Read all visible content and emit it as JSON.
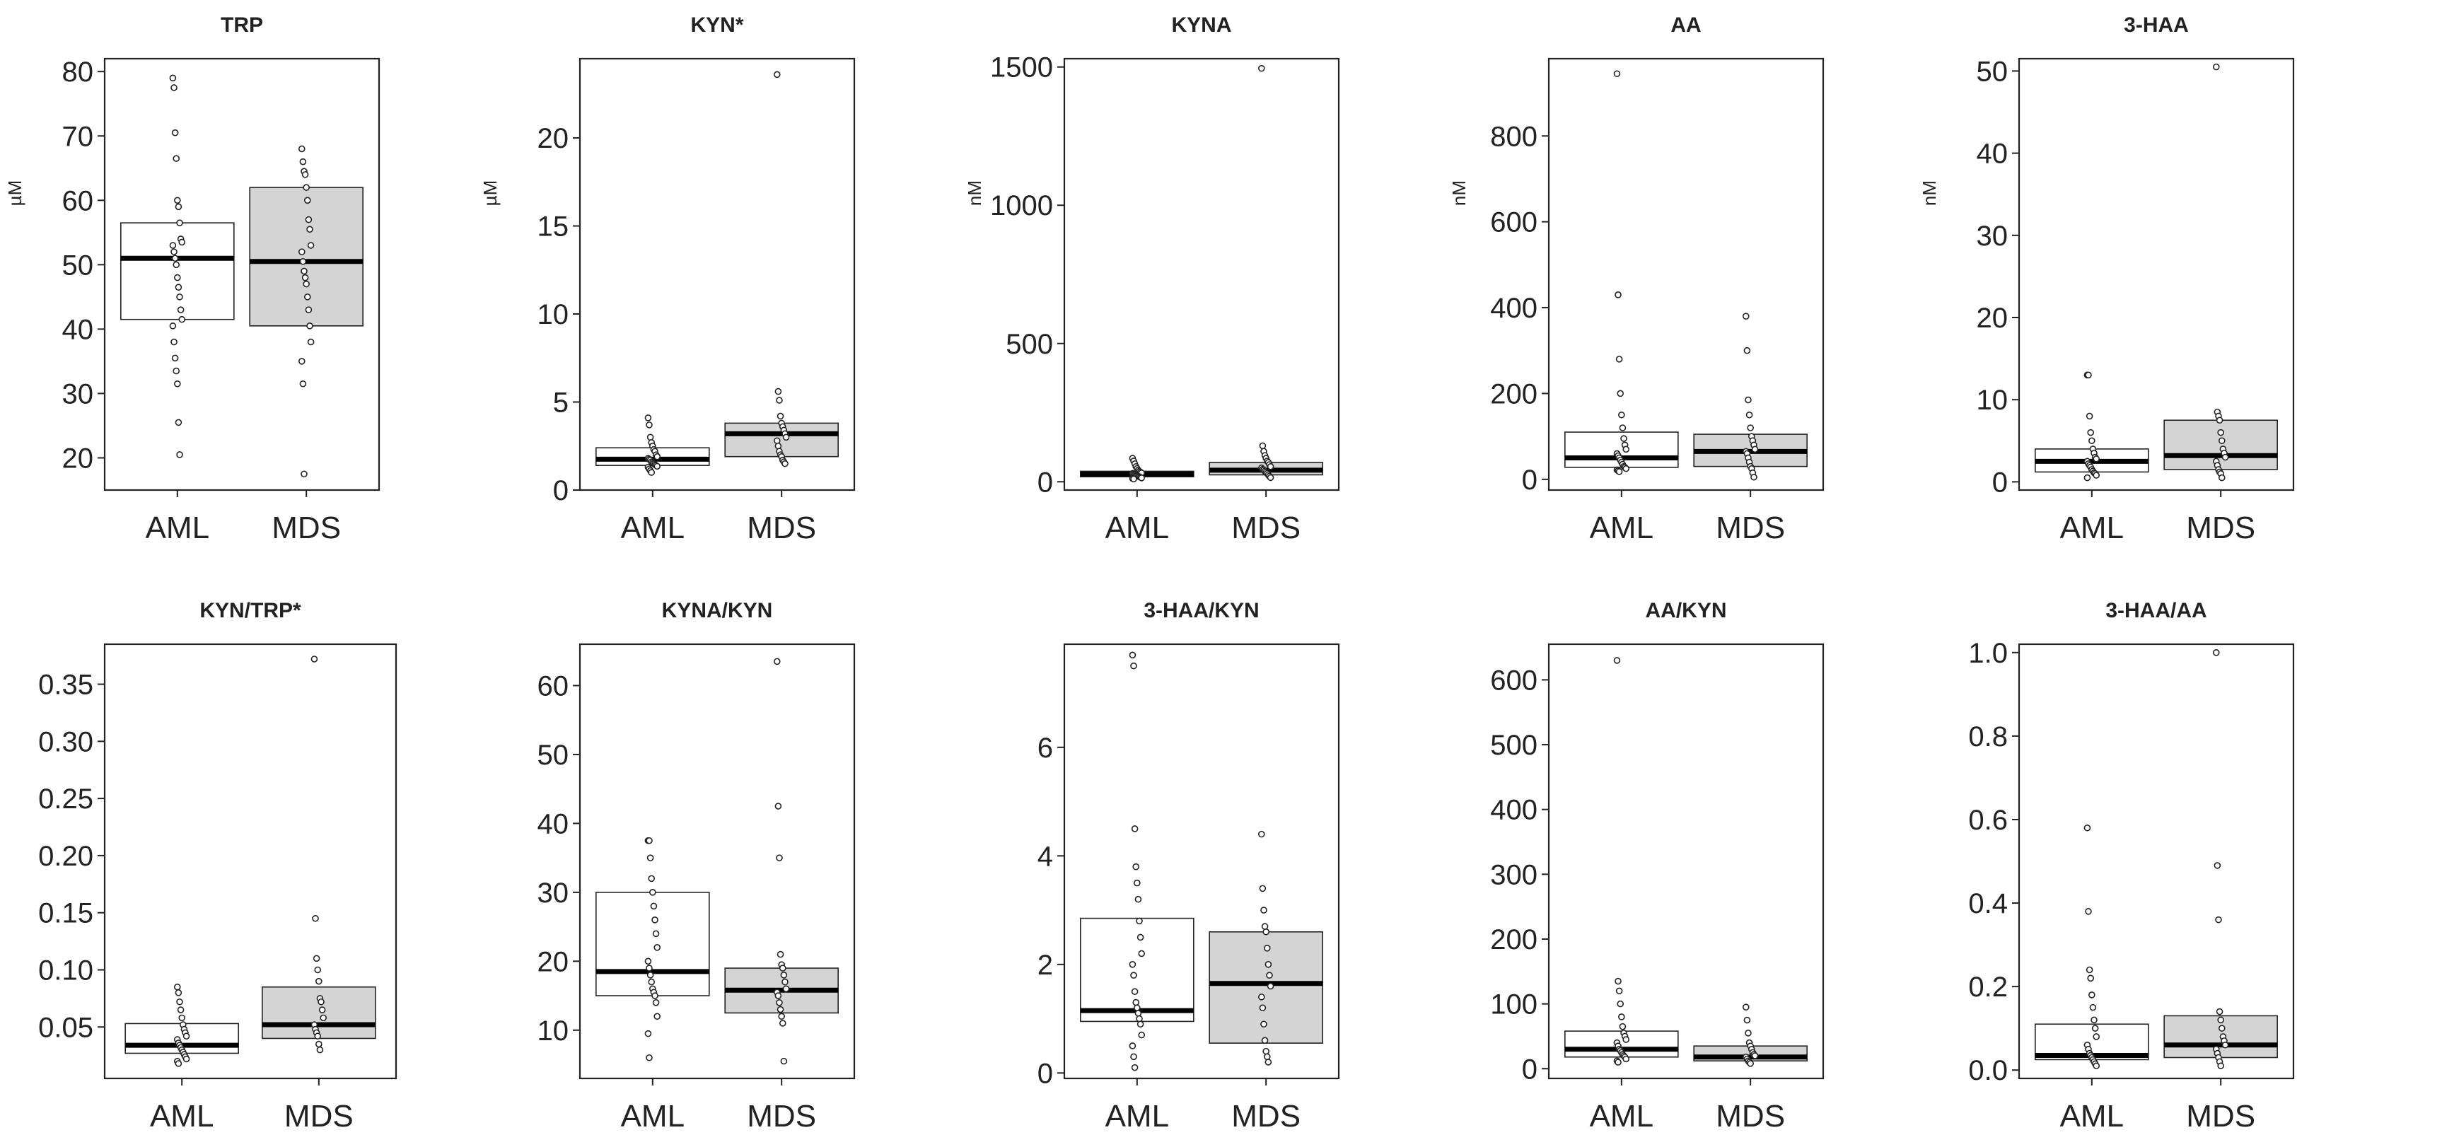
{
  "figure": {
    "categories": [
      "AML",
      "MDS"
    ],
    "fills": {
      "AML": "#ffffff",
      "MDS": "#d4d4d4"
    }
  },
  "chart_data": [
    {
      "type": "box",
      "title": "TRP",
      "ylabel": "µM",
      "ylim": [
        15,
        82
      ],
      "yticks": [
        20,
        30,
        40,
        50,
        60,
        70,
        80
      ],
      "tick_labels": [
        "20",
        "30",
        "40",
        "50",
        "60",
        "70",
        "80"
      ],
      "categories": [
        "AML",
        "MDS"
      ],
      "boxes": [
        {
          "name": "AML",
          "q1": 41.5,
          "median": 51,
          "q3": 56.5,
          "points": [
            79,
            77.5,
            70.5,
            66.5,
            60,
            59,
            56.5,
            54,
            53.5,
            53,
            52,
            51,
            50,
            48,
            46.5,
            45,
            43,
            41.5,
            40.5,
            38,
            35.5,
            33.5,
            31.5,
            25.5,
            20.5
          ]
        },
        {
          "name": "MDS",
          "q1": 40.5,
          "median": 50.5,
          "q3": 62,
          "points": [
            68,
            66,
            64.5,
            64,
            62,
            60,
            57,
            55.5,
            53,
            52,
            50.5,
            49,
            48,
            47,
            45,
            43,
            40.5,
            38,
            35,
            31.5,
            17.5
          ]
        }
      ]
    },
    {
      "type": "box",
      "title": "KYN*",
      "ylabel": "µM",
      "ylim": [
        0,
        24.5
      ],
      "yticks": [
        0,
        5,
        10,
        15,
        20
      ],
      "tick_labels": [
        "0",
        "5",
        "10",
        "15",
        "20"
      ],
      "categories": [
        "AML",
        "MDS"
      ],
      "boxes": [
        {
          "name": "AML",
          "q1": 1.4,
          "median": 1.75,
          "q3": 2.4,
          "points": [
            4.1,
            3.7,
            3.0,
            2.7,
            2.5,
            2.3,
            2.2,
            2.0,
            1.9,
            1.8,
            1.75,
            1.7,
            1.6,
            1.55,
            1.5,
            1.45,
            1.4,
            1.35,
            1.3,
            1.2,
            1.1,
            1.0
          ]
        },
        {
          "name": "MDS",
          "q1": 1.9,
          "median": 3.2,
          "q3": 3.8,
          "points": [
            23.6,
            5.6,
            5.1,
            4.2,
            3.8,
            3.6,
            3.4,
            3.2,
            3.0,
            2.8,
            2.5,
            2.2,
            2.0,
            1.9,
            1.7,
            1.6,
            1.5
          ]
        }
      ]
    },
    {
      "type": "box",
      "title": "KYNA",
      "ylabel": "nM",
      "ylim": [
        -30,
        1530
      ],
      "yticks": [
        0,
        500,
        1000,
        1500
      ],
      "tick_labels": [
        "0",
        "500",
        "1000",
        "1500"
      ],
      "categories": [
        "AML",
        "MDS"
      ],
      "boxes": [
        {
          "name": "AML",
          "q1": 18,
          "median": 28,
          "q3": 38,
          "points": [
            85,
            75,
            65,
            55,
            48,
            42,
            38,
            35,
            32,
            30,
            28,
            26,
            24,
            22,
            20,
            18,
            16,
            14,
            12,
            10
          ]
        },
        {
          "name": "MDS",
          "q1": 25,
          "median": 42,
          "q3": 70,
          "points": [
            1495,
            130,
            110,
            95,
            85,
            75,
            70,
            62,
            55,
            50,
            45,
            42,
            38,
            34,
            30,
            25,
            20,
            15
          ]
        }
      ]
    },
    {
      "type": "box",
      "title": "AA",
      "ylabel": "nM",
      "ylim": [
        -25,
        980
      ],
      "yticks": [
        0,
        200,
        400,
        600,
        800
      ],
      "tick_labels": [
        "0",
        "200",
        "400",
        "600",
        "800"
      ],
      "categories": [
        "AML",
        "MDS"
      ],
      "boxes": [
        {
          "name": "AML",
          "q1": 28,
          "median": 50,
          "q3": 110,
          "points": [
            945,
            430,
            280,
            200,
            150,
            120,
            95,
            80,
            70,
            60,
            55,
            50,
            45,
            40,
            35,
            30,
            28,
            25,
            22,
            20,
            18
          ]
        },
        {
          "name": "MDS",
          "q1": 30,
          "median": 65,
          "q3": 105,
          "points": [
            380,
            300,
            185,
            150,
            120,
            100,
            90,
            80,
            70,
            65,
            60,
            50,
            40,
            30,
            25,
            15,
            5
          ]
        }
      ]
    },
    {
      "type": "box",
      "title": "3-HAA",
      "ylabel": "nM",
      "ylim": [
        -1,
        51.5
      ],
      "yticks": [
        0,
        10,
        20,
        30,
        40,
        50
      ],
      "tick_labels": [
        "0",
        "10",
        "20",
        "30",
        "40",
        "50"
      ],
      "categories": [
        "AML",
        "MDS"
      ],
      "boxes": [
        {
          "name": "AML",
          "q1": 1.2,
          "median": 2.5,
          "q3": 4,
          "points": [
            13,
            13,
            8,
            6,
            5,
            4,
            3.5,
            3,
            2.8,
            2.5,
            2.2,
            2,
            1.8,
            1.5,
            1.3,
            1.1,
            1,
            0.8,
            0.5
          ]
        },
        {
          "name": "MDS",
          "q1": 1.5,
          "median": 3.2,
          "q3": 7.5,
          "points": [
            50.5,
            8.5,
            8,
            7.5,
            6,
            5,
            4,
            3.5,
            3,
            2.5,
            2,
            1.5,
            1.2,
            1,
            0.5
          ]
        }
      ]
    },
    {
      "type": "box",
      "title": "KYN/TRP*",
      "ylabel": "",
      "ylim": [
        0.005,
        0.385
      ],
      "yticks": [
        0.05,
        0.1,
        0.15,
        0.2,
        0.25,
        0.3,
        0.35
      ],
      "tick_labels": [
        "0.05",
        "0.10",
        "0.15",
        "0.20",
        "0.25",
        "0.30",
        "0.35"
      ],
      "categories": [
        "AML",
        "MDS"
      ],
      "boxes": [
        {
          "name": "AML",
          "q1": 0.027,
          "median": 0.034,
          "q3": 0.053,
          "points": [
            0.085,
            0.08,
            0.072,
            0.065,
            0.058,
            0.052,
            0.048,
            0.045,
            0.042,
            0.039,
            0.036,
            0.034,
            0.032,
            0.03,
            0.028,
            0.026,
            0.024,
            0.022,
            0.02,
            0.018
          ]
        },
        {
          "name": "MDS",
          "q1": 0.04,
          "median": 0.052,
          "q3": 0.085,
          "points": [
            0.372,
            0.145,
            0.11,
            0.1,
            0.09,
            0.075,
            0.072,
            0.065,
            0.058,
            0.052,
            0.048,
            0.045,
            0.042,
            0.035,
            0.03
          ]
        }
      ]
    },
    {
      "type": "box",
      "title": "KYNA/KYN",
      "ylabel": "",
      "ylim": [
        3,
        66
      ],
      "yticks": [
        10,
        20,
        30,
        40,
        50,
        60
      ],
      "tick_labels": [
        "10",
        "20",
        "30",
        "40",
        "50",
        "60"
      ],
      "categories": [
        "AML",
        "MDS"
      ],
      "boxes": [
        {
          "name": "AML",
          "q1": 15,
          "median": 18.5,
          "q3": 30,
          "points": [
            37.5,
            37.5,
            35,
            32,
            30,
            28,
            26,
            24,
            22,
            20,
            19,
            18,
            17,
            16,
            15.5,
            15,
            14,
            12,
            9.5,
            6
          ]
        },
        {
          "name": "MDS",
          "q1": 12.5,
          "median": 15.8,
          "q3": 19,
          "points": [
            63.5,
            42.5,
            35,
            21,
            19.5,
            19,
            18,
            17,
            16,
            15.5,
            15,
            14,
            13,
            12,
            11,
            5.5
          ]
        }
      ]
    },
    {
      "type": "box",
      "title": "3-HAA/KYN",
      "ylabel": "",
      "ylim": [
        -0.1,
        7.9
      ],
      "yticks": [
        0,
        2,
        4,
        6
      ],
      "tick_labels": [
        "0",
        "2",
        "4",
        "6"
      ],
      "categories": [
        "AML",
        "MDS"
      ],
      "boxes": [
        {
          "name": "AML",
          "q1": 0.95,
          "median": 1.15,
          "q3": 2.85,
          "points": [
            7.7,
            7.5,
            4.5,
            3.8,
            3.5,
            3.2,
            2.8,
            2.5,
            2.2,
            2.0,
            1.8,
            1.5,
            1.3,
            1.2,
            1.1,
            1.0,
            0.9,
            0.7,
            0.5,
            0.3,
            0.1
          ]
        },
        {
          "name": "MDS",
          "q1": 0.55,
          "median": 1.65,
          "q3": 2.6,
          "points": [
            4.4,
            3.4,
            3.0,
            2.7,
            2.6,
            2.3,
            2.0,
            1.8,
            1.6,
            1.4,
            1.2,
            0.9,
            0.6,
            0.4,
            0.3,
            0.2
          ]
        }
      ]
    },
    {
      "type": "box",
      "title": "AA/KYN",
      "ylabel": "",
      "ylim": [
        -15,
        655
      ],
      "yticks": [
        0,
        100,
        200,
        300,
        400,
        500,
        600
      ],
      "tick_labels": [
        "0",
        "100",
        "200",
        "300",
        "400",
        "500",
        "600"
      ],
      "categories": [
        "AML",
        "MDS"
      ],
      "boxes": [
        {
          "name": "AML",
          "q1": 18,
          "median": 30,
          "q3": 58,
          "points": [
            630,
            135,
            120,
            100,
            80,
            65,
            55,
            50,
            45,
            40,
            35,
            30,
            28,
            25,
            22,
            20,
            18,
            15,
            12,
            10
          ]
        },
        {
          "name": "MDS",
          "q1": 12,
          "median": 18,
          "q3": 35,
          "points": [
            95,
            75,
            55,
            40,
            35,
            30,
            25,
            22,
            20,
            18,
            15,
            12,
            10,
            8
          ]
        }
      ]
    },
    {
      "type": "box",
      "title": "3-HAA/AA",
      "ylabel": "",
      "ylim": [
        -0.02,
        1.02
      ],
      "yticks": [
        0.0,
        0.2,
        0.4,
        0.6,
        0.8,
        1.0
      ],
      "tick_labels": [
        "0.0",
        "0.2",
        "0.4",
        "0.6",
        "0.8",
        "1.0"
      ],
      "categories": [
        "AML",
        "MDS"
      ],
      "boxes": [
        {
          "name": "AML",
          "q1": 0.025,
          "median": 0.035,
          "q3": 0.11,
          "points": [
            0.58,
            0.38,
            0.24,
            0.22,
            0.18,
            0.15,
            0.12,
            0.1,
            0.08,
            0.06,
            0.05,
            0.04,
            0.035,
            0.03,
            0.025,
            0.02,
            0.015,
            0.01
          ]
        },
        {
          "name": "MDS",
          "q1": 0.03,
          "median": 0.06,
          "q3": 0.13,
          "points": [
            1.0,
            0.49,
            0.36,
            0.14,
            0.12,
            0.1,
            0.08,
            0.07,
            0.06,
            0.05,
            0.04,
            0.03,
            0.02,
            0.01
          ]
        }
      ]
    }
  ]
}
